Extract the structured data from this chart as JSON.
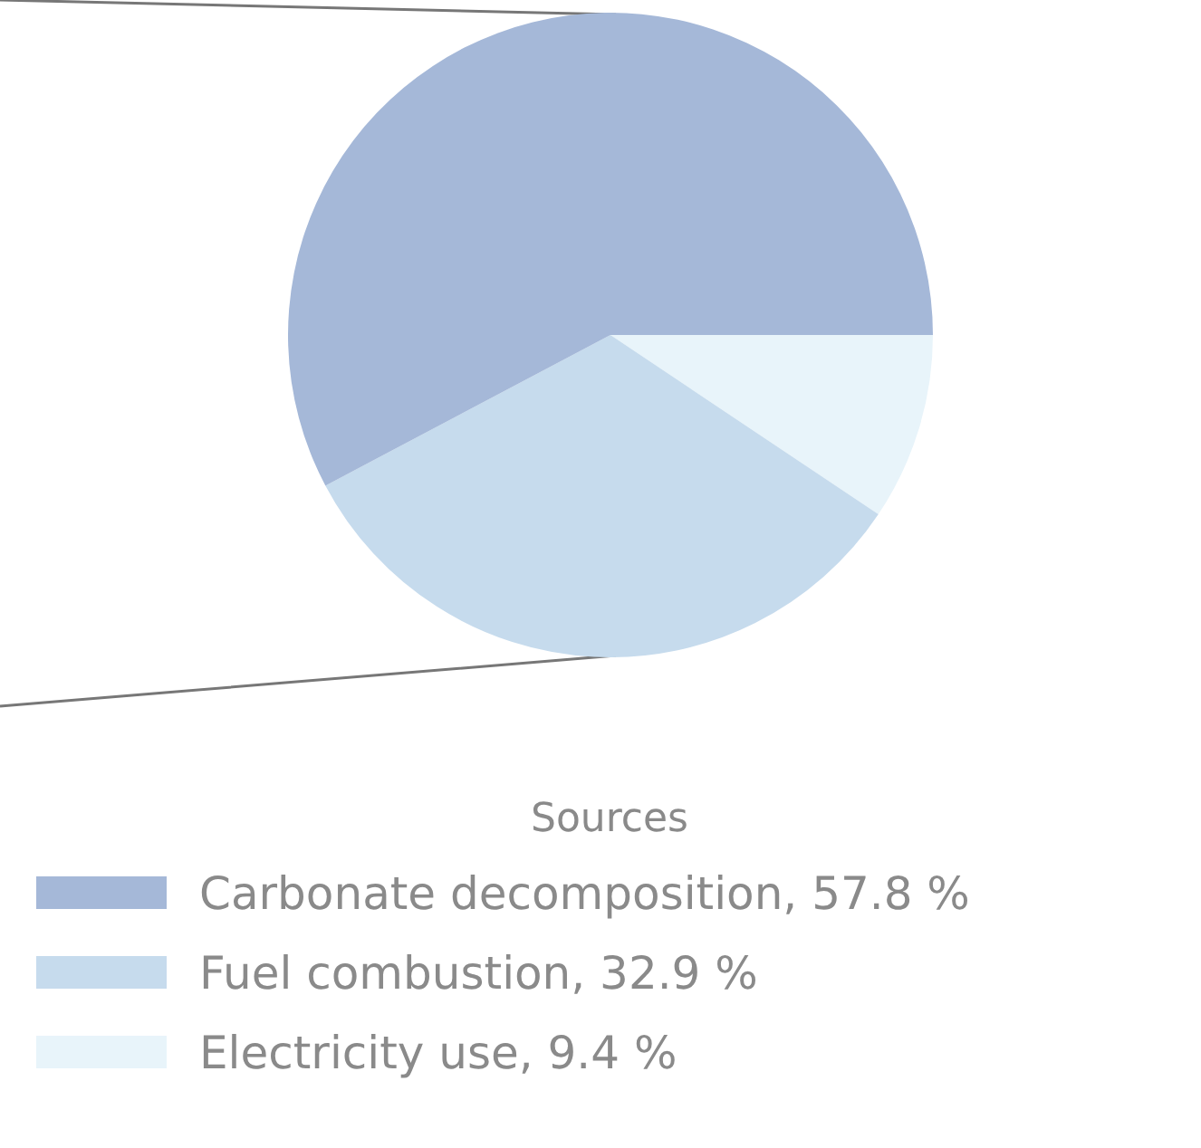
{
  "chart_data": {
    "type": "pie",
    "legend_title": "Sources",
    "legend": "bottom",
    "categories": [
      "Carbonate decomposition",
      "Fuel combustion",
      "Electricity use"
    ],
    "values": [
      57.8,
      32.9,
      9.4
    ],
    "value_labels": [
      "57.8 %",
      "32.9 %",
      "9.4 %"
    ],
    "colors": [
      "#a5b8d8",
      "#c6dbed",
      "#e8f4fa"
    ]
  }
}
